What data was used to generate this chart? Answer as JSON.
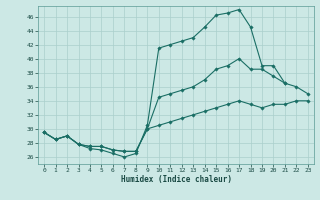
{
  "xlabel": "Humidex (Indice chaleur)",
  "bg_color": "#cce8e5",
  "line_color": "#1a6e65",
  "grid_color": "#aacfcc",
  "xlim": [
    -0.5,
    23.5
  ],
  "ylim": [
    25.0,
    47.5
  ],
  "yticks": [
    26,
    28,
    30,
    32,
    34,
    36,
    38,
    40,
    42,
    44,
    46
  ],
  "xticks": [
    0,
    1,
    2,
    3,
    4,
    5,
    6,
    7,
    8,
    9,
    10,
    11,
    12,
    13,
    14,
    15,
    16,
    17,
    18,
    19,
    20,
    21,
    22,
    23
  ],
  "line1_y": [
    29.5,
    28.5,
    29.0,
    27.8,
    27.2,
    27.0,
    26.5,
    26.0,
    26.5,
    30.5,
    41.5,
    42.0,
    42.5,
    43.0,
    44.5,
    46.2,
    46.5,
    47.0,
    44.5,
    39.0,
    39.0,
    36.5,
    null,
    null
  ],
  "line2_y": [
    29.5,
    28.5,
    29.0,
    27.8,
    27.5,
    27.5,
    27.0,
    26.8,
    26.8,
    30.0,
    34.5,
    35.0,
    35.5,
    36.0,
    37.0,
    38.5,
    39.0,
    40.0,
    38.5,
    38.5,
    37.5,
    36.5,
    36.0,
    35.0
  ],
  "line3_y": [
    29.5,
    28.5,
    29.0,
    27.8,
    27.5,
    27.5,
    27.0,
    26.8,
    26.8,
    30.0,
    30.5,
    31.0,
    31.5,
    32.0,
    32.5,
    33.0,
    33.5,
    34.0,
    33.5,
    33.0,
    33.5,
    33.5,
    34.0,
    34.0
  ]
}
